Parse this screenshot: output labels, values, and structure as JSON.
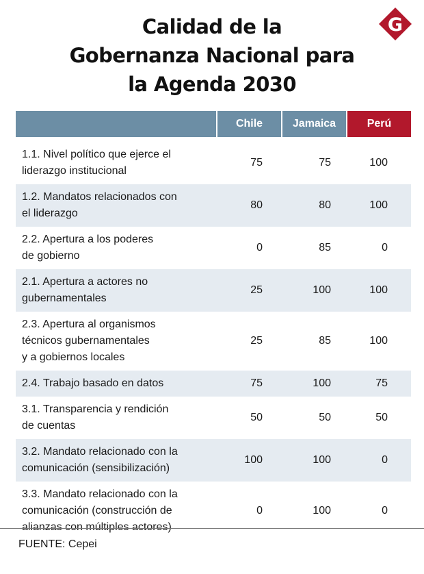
{
  "title_lines": [
    "Calidad de la",
    "Gobernanza Nacional para",
    "la Agenda 2030"
  ],
  "logo_letter": "G",
  "colors": {
    "header_bg": "#6c8ea5",
    "peru_header_bg": "#b2182c",
    "row_shade": "#e5ebf1",
    "logo_red": "#b2182c"
  },
  "chart_data": {
    "type": "table",
    "title": "Calidad de la Gobernanza Nacional para la Agenda 2030",
    "columns": [
      "",
      "Chile",
      "Jamaica",
      "Perú"
    ],
    "rows": [
      {
        "label_lines": [
          "1.1. Nivel político que ejerce el",
          "liderazgo institucional"
        ],
        "values": [
          75,
          75,
          100
        ]
      },
      {
        "label_lines": [
          "1.2. Mandatos relacionados con",
          "el liderazgo"
        ],
        "values": [
          80,
          80,
          100
        ]
      },
      {
        "label_lines": [
          "2.2. Apertura a los poderes",
          "de gobierno"
        ],
        "values": [
          0,
          85,
          0
        ]
      },
      {
        "label_lines": [
          "2.1. Apertura a actores no",
          "gubernamentales"
        ],
        "values": [
          25,
          100,
          100
        ]
      },
      {
        "label_lines": [
          "2.3. Apertura al organismos",
          "técnicos gubernamentales",
          "y a gobiernos locales"
        ],
        "values": [
          25,
          85,
          100
        ]
      },
      {
        "label_lines": [
          "2.4. Trabajo basado en datos"
        ],
        "values": [
          75,
          100,
          75
        ]
      },
      {
        "label_lines": [
          "3.1. Transparencia y rendición",
          "de cuentas"
        ],
        "values": [
          50,
          50,
          50
        ]
      },
      {
        "label_lines": [
          "3.2. Mandato relacionado con la",
          "comunicación (sensibilización)"
        ],
        "values": [
          100,
          100,
          0
        ]
      },
      {
        "label_lines": [
          "3.3. Mandato relacionado con la",
          "comunicación (construcción de",
          "alianzas con múltiples actores)"
        ],
        "values": [
          0,
          100,
          0
        ]
      }
    ]
  },
  "source": "FUENTE: Cepei"
}
